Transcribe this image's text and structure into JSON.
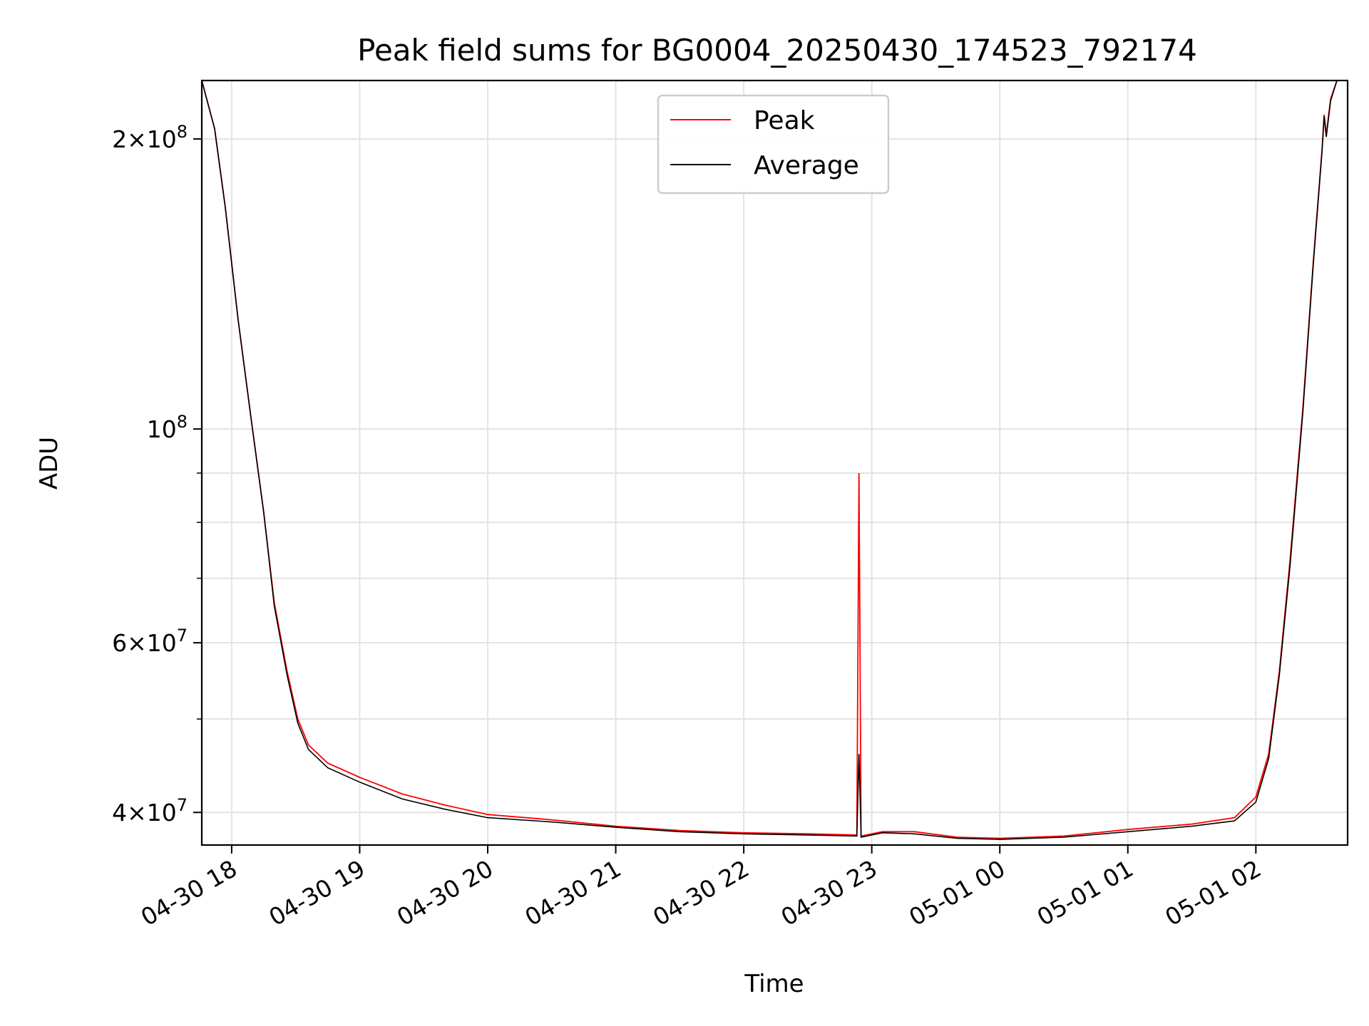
{
  "chart_data": {
    "type": "line",
    "title": "Peak field sums for BG0004_20250430_174523_792174",
    "xlabel": "Time",
    "ylabel": "ADU",
    "y_scale": "log",
    "ylim": [
      37000000,
      230000000
    ],
    "xlim": [
      "2025-04-30 17:46",
      "2025-05-01 02:43"
    ],
    "x_ticks": [
      {
        "t": "2025-04-30 18:00",
        "label": "04-30 18"
      },
      {
        "t": "2025-04-30 19:00",
        "label": "04-30 19"
      },
      {
        "t": "2025-04-30 20:00",
        "label": "04-30 20"
      },
      {
        "t": "2025-04-30 21:00",
        "label": "04-30 21"
      },
      {
        "t": "2025-04-30 22:00",
        "label": "04-30 22"
      },
      {
        "t": "2025-04-30 23:00",
        "label": "04-30 23"
      },
      {
        "t": "2025-05-01 00:00",
        "label": "05-01 00"
      },
      {
        "t": "2025-05-01 01:00",
        "label": "05-01 01"
      },
      {
        "t": "2025-05-01 02:00",
        "label": "05-01 02"
      }
    ],
    "y_ticks": [
      {
        "value": 200000000,
        "mantissa": "2",
        "exp": "8"
      },
      {
        "value": 100000000,
        "mantissa": "",
        "exp": "8"
      },
      {
        "value": 60000000,
        "mantissa": "6",
        "exp": "7"
      },
      {
        "value": 40000000,
        "mantissa": "4",
        "exp": "7"
      }
    ],
    "y_minor_ticks": [
      50000000,
      70000000,
      80000000,
      90000000
    ],
    "grid": true,
    "legend_position": "top-center",
    "series": [
      {
        "name": "Peak",
        "color": "#ff0000",
        "points": [
          [
            "2025-04-30 17:46",
            230000000
          ],
          [
            "2025-04-30 17:52",
            205000000
          ],
          [
            "2025-04-30 17:57",
            170000000
          ],
          [
            "2025-04-30 18:03",
            130000000
          ],
          [
            "2025-04-30 18:09",
            103000000
          ],
          [
            "2025-04-30 18:15",
            82000000
          ],
          [
            "2025-04-30 18:20",
            66000000
          ],
          [
            "2025-04-30 18:26",
            56000000
          ],
          [
            "2025-04-30 18:31",
            50000000
          ],
          [
            "2025-04-30 18:36",
            47000000
          ],
          [
            "2025-04-30 18:45",
            45000000
          ],
          [
            "2025-04-30 19:00",
            43500000
          ],
          [
            "2025-04-30 19:20",
            41800000
          ],
          [
            "2025-04-30 19:40",
            40700000
          ],
          [
            "2025-04-30 20:00",
            39800000
          ],
          [
            "2025-04-30 20:30",
            39300000
          ],
          [
            "2025-04-30 21:00",
            38700000
          ],
          [
            "2025-04-30 21:30",
            38300000
          ],
          [
            "2025-04-30 22:00",
            38100000
          ],
          [
            "2025-04-30 22:30",
            38000000
          ],
          [
            "2025-04-30 22:53",
            37900000
          ],
          [
            "2025-04-30 22:54",
            90000000
          ],
          [
            "2025-04-30 22:55",
            37800000
          ],
          [
            "2025-04-30 23:05",
            38200000
          ],
          [
            "2025-04-30 23:20",
            38200000
          ],
          [
            "2025-04-30 23:40",
            37700000
          ],
          [
            "2025-05-01 00:00",
            37600000
          ],
          [
            "2025-05-01 00:30",
            37800000
          ],
          [
            "2025-05-01 01:00",
            38400000
          ],
          [
            "2025-05-01 01:30",
            38900000
          ],
          [
            "2025-05-01 01:50",
            39500000
          ],
          [
            "2025-05-01 02:00",
            41500000
          ],
          [
            "2025-05-01 02:06",
            46000000
          ],
          [
            "2025-05-01 02:11",
            56000000
          ],
          [
            "2025-05-01 02:16",
            73000000
          ],
          [
            "2025-05-01 02:22",
            105000000
          ],
          [
            "2025-05-01 02:27",
            150000000
          ],
          [
            "2025-05-01 02:31",
            195000000
          ],
          [
            "2025-05-01 02:32",
            212000000
          ],
          [
            "2025-05-01 02:33",
            202000000
          ],
          [
            "2025-05-01 02:35",
            220000000
          ],
          [
            "2025-05-01 02:38",
            230000000
          ],
          [
            "2025-05-01 02:43",
            230000000
          ]
        ]
      },
      {
        "name": "Average",
        "color": "#000000",
        "points": [
          [
            "2025-04-30 17:46",
            230000000
          ],
          [
            "2025-04-30 17:52",
            205000000
          ],
          [
            "2025-04-30 17:57",
            170000000
          ],
          [
            "2025-04-30 18:03",
            130000000
          ],
          [
            "2025-04-30 18:09",
            103000000
          ],
          [
            "2025-04-30 18:15",
            82000000
          ],
          [
            "2025-04-30 18:20",
            65500000
          ],
          [
            "2025-04-30 18:26",
            55500000
          ],
          [
            "2025-04-30 18:31",
            49500000
          ],
          [
            "2025-04-30 18:36",
            46500000
          ],
          [
            "2025-04-30 18:45",
            44500000
          ],
          [
            "2025-04-30 19:00",
            43000000
          ],
          [
            "2025-04-30 19:20",
            41300000
          ],
          [
            "2025-04-30 19:40",
            40300000
          ],
          [
            "2025-04-30 20:00",
            39500000
          ],
          [
            "2025-04-30 20:30",
            39100000
          ],
          [
            "2025-04-30 21:00",
            38600000
          ],
          [
            "2025-04-30 21:30",
            38200000
          ],
          [
            "2025-04-30 22:00",
            38000000
          ],
          [
            "2025-04-30 22:30",
            37900000
          ],
          [
            "2025-04-30 22:53",
            37800000
          ],
          [
            "2025-04-30 22:54",
            46000000
          ],
          [
            "2025-04-30 22:55",
            37700000
          ],
          [
            "2025-04-30 23:05",
            38100000
          ],
          [
            "2025-04-30 23:20",
            38000000
          ],
          [
            "2025-04-30 23:40",
            37600000
          ],
          [
            "2025-05-01 00:00",
            37500000
          ],
          [
            "2025-05-01 00:30",
            37700000
          ],
          [
            "2025-05-01 01:00",
            38200000
          ],
          [
            "2025-05-01 01:30",
            38700000
          ],
          [
            "2025-05-01 01:50",
            39200000
          ],
          [
            "2025-05-01 02:00",
            41000000
          ],
          [
            "2025-05-01 02:06",
            45500000
          ],
          [
            "2025-05-01 02:11",
            55500000
          ],
          [
            "2025-05-01 02:16",
            72000000
          ],
          [
            "2025-05-01 02:22",
            104000000
          ],
          [
            "2025-05-01 02:27",
            149000000
          ],
          [
            "2025-05-01 02:31",
            194000000
          ],
          [
            "2025-05-01 02:32",
            211000000
          ],
          [
            "2025-05-01 02:33",
            201000000
          ],
          [
            "2025-05-01 02:35",
            219000000
          ],
          [
            "2025-05-01 02:38",
            230000000
          ],
          [
            "2025-05-01 02:43",
            230000000
          ]
        ]
      }
    ]
  }
}
